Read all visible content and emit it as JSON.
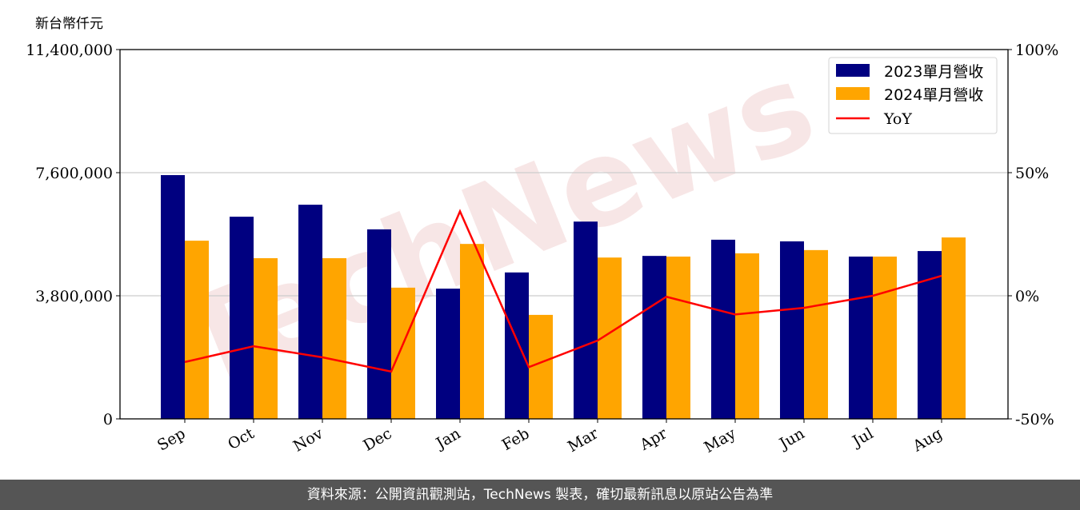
{
  "unit_label": "新台幣仟元",
  "footer": "資料來源：公開資訊觀測站，TechNews 製表，確切最新訊息以原站公告為準",
  "watermark": "TechNews",
  "chart_data": {
    "type": "bar",
    "categories": [
      "Sep",
      "Oct",
      "Nov",
      "Dec",
      "Jan",
      "Feb",
      "Mar",
      "Apr",
      "May",
      "Jun",
      "Jul",
      "Aug"
    ],
    "series": [
      {
        "name": "2023單月營收",
        "type": "bar",
        "axis": "left",
        "color": "#000080",
        "values": [
          7525000,
          6240000,
          6610000,
          5850000,
          4020000,
          4520000,
          6090000,
          5030000,
          5530000,
          5480000,
          5010000,
          5180000
        ]
      },
      {
        "name": "2024單月營收",
        "type": "bar",
        "axis": "left",
        "color": "#FFA500",
        "values": [
          5500000,
          4960000,
          4960000,
          4050000,
          5400000,
          3210000,
          4980000,
          5010000,
          5110000,
          5210000,
          5010000,
          5600000
        ]
      },
      {
        "name": "YoY",
        "type": "line",
        "axis": "right",
        "color": "#FF0000",
        "values": [
          -26.9,
          -20.5,
          -25.0,
          -30.8,
          34.3,
          -29.0,
          -18.2,
          -0.4,
          -7.6,
          -4.9,
          0.0,
          8.1
        ]
      }
    ],
    "y_left": {
      "range": [
        0,
        11400000
      ],
      "ticks": [
        "0",
        "3,800,000",
        "7,600,000",
        "11,400,000"
      ],
      "tick_values": [
        0,
        3800000,
        7600000,
        11400000
      ]
    },
    "y_right": {
      "range": [
        -50,
        100
      ],
      "ticks": [
        "-50%",
        "0%",
        "50%",
        "100%"
      ],
      "tick_values": [
        -50,
        0,
        50,
        100
      ]
    },
    "grid": "horizontal",
    "legend": "top-right"
  }
}
